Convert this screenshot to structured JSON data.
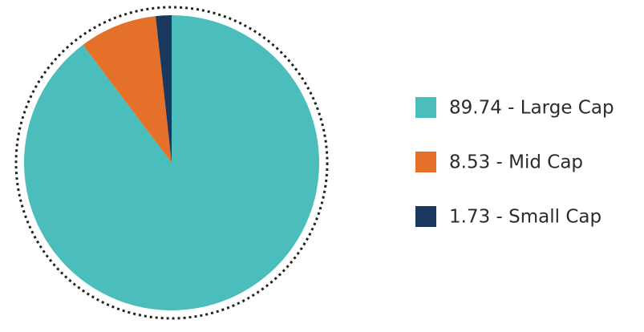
{
  "chart_data": {
    "type": "pie",
    "categories": [
      "89.74 - Large Cap",
      "8.53 - Mid Cap",
      "1.73 - Small Cap"
    ],
    "values": [
      89.74,
      8.53,
      1.73
    ],
    "colors": [
      "#4abdbc",
      "#e5702a",
      "#1a3760"
    ],
    "legend": "right"
  }
}
